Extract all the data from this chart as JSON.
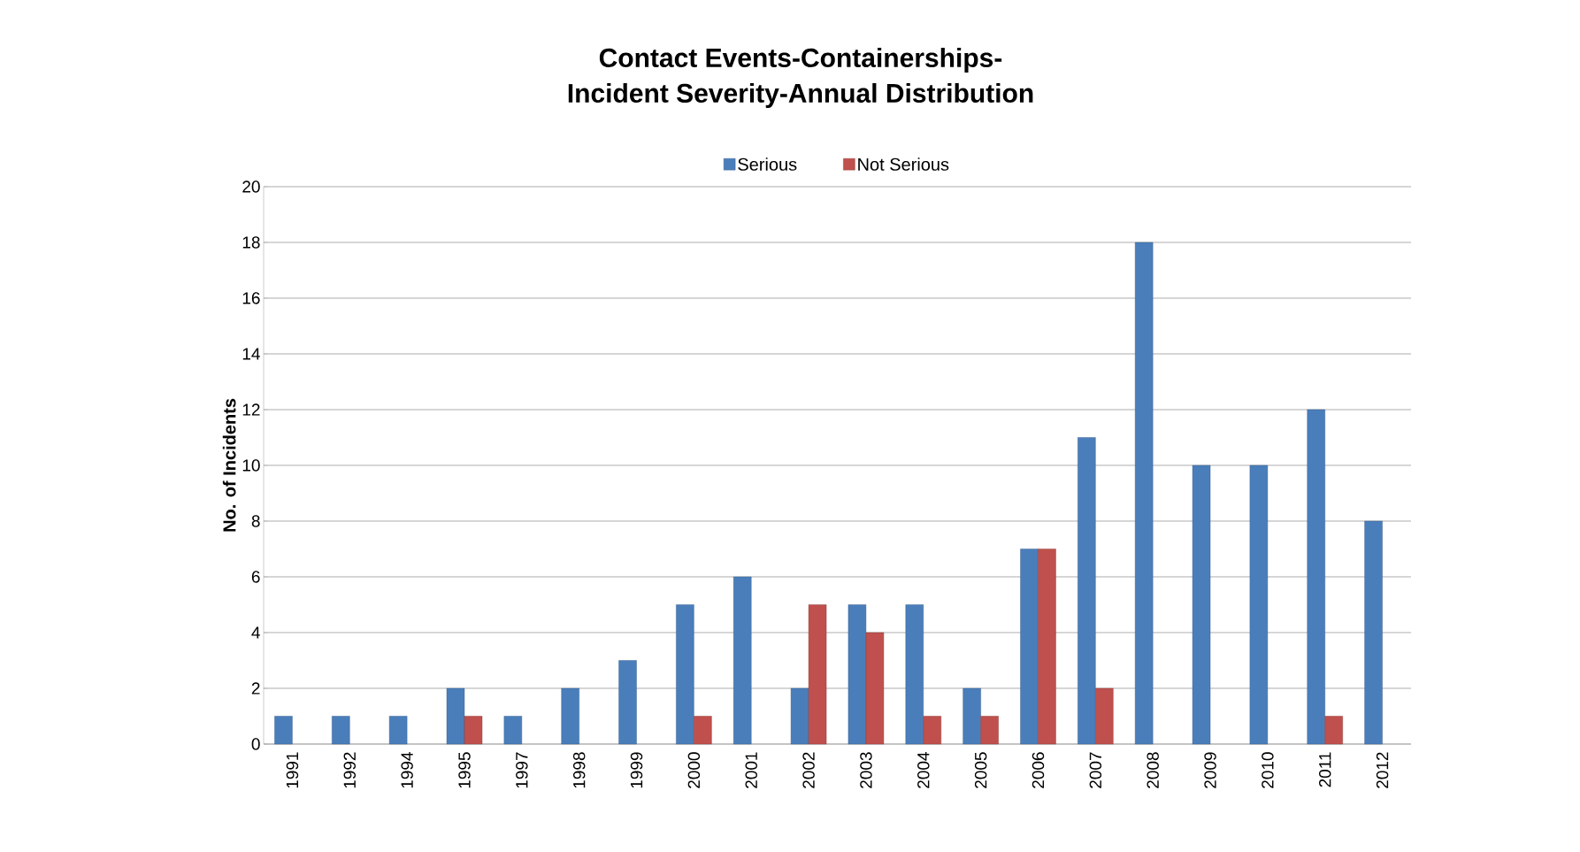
{
  "chart_data": {
    "type": "bar",
    "title": "Contact Events-Containerships-\nIncident Severity-Annual Distribution",
    "ylabel": "No. of Incidents",
    "categories": [
      "1991",
      "1992",
      "1994",
      "1995",
      "1997",
      "1998",
      "1999",
      "2000",
      "2001",
      "2002",
      "2003",
      "2004",
      "2005",
      "2006",
      "2007",
      "2008",
      "2009",
      "2010",
      "2011",
      "2012"
    ],
    "series": [
      {
        "name": "Serious",
        "color": "#4a7ebb",
        "values": [
          1,
          1,
          1,
          2,
          1,
          2,
          3,
          5,
          6,
          2,
          5,
          5,
          2,
          7,
          11,
          18,
          10,
          10,
          12,
          8
        ]
      },
      {
        "name": "Not Serious",
        "color": "#c0504d",
        "values": [
          null,
          null,
          null,
          1,
          null,
          null,
          null,
          1,
          null,
          5,
          4,
          1,
          1,
          7,
          2,
          null,
          null,
          null,
          1,
          null
        ]
      }
    ],
    "ylim": [
      0,
      20
    ],
    "yticks": [
      0,
      2,
      4,
      6,
      8,
      10,
      12,
      14,
      16,
      18,
      20
    ],
    "grid": "y",
    "legend": "top"
  }
}
